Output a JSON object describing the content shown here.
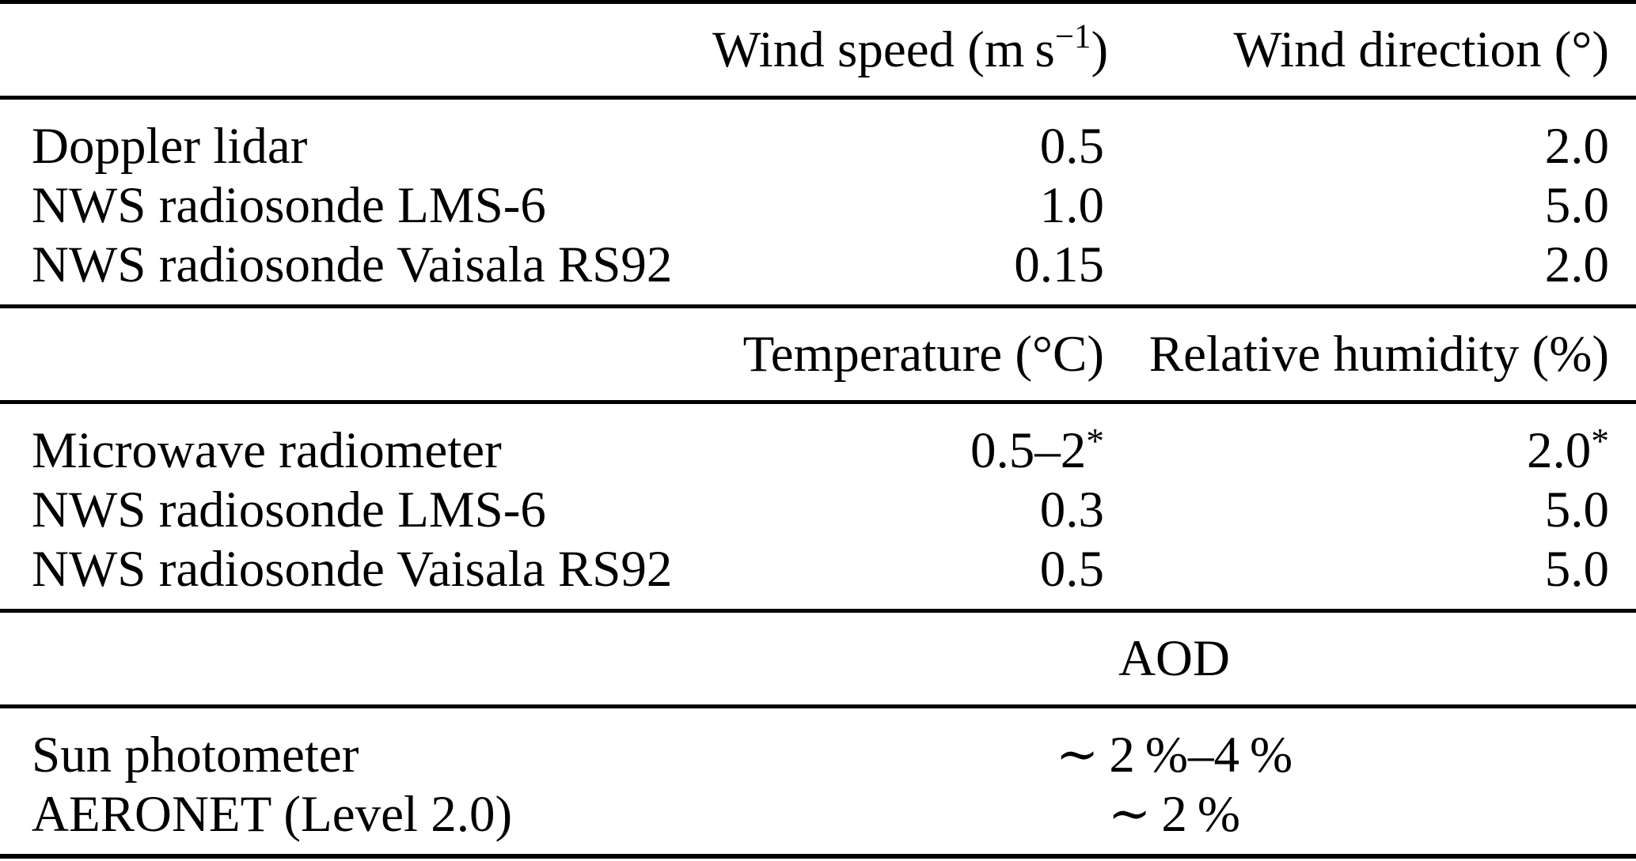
{
  "page": {
    "background_color": "#ffffff",
    "text_color": "#000000",
    "rule_color": "#000000"
  },
  "table": {
    "sections": [
      {
        "name": "wind",
        "header": {
          "instrument": "",
          "col2": {
            "pre": "Wind speed (m s",
            "sup": "−1",
            "post": ")"
          },
          "col3": "Wind direction (°)"
        },
        "rows": [
          {
            "instrument": "Doppler lidar",
            "col2": "0.5",
            "col3": "2.0"
          },
          {
            "instrument": "NWS radiosonde LMS-6",
            "col2": "1.0",
            "col3": "5.0"
          },
          {
            "instrument": "NWS radiosonde Vaisala RS92",
            "col2": "0.15",
            "col3": "2.0"
          }
        ]
      },
      {
        "name": "thermodynamics",
        "header": {
          "instrument": "",
          "col2": "Temperature (°C)",
          "col3": "Relative humidity (%)"
        },
        "rows": [
          {
            "instrument": "Microwave radiometer",
            "col2": "0.5–2",
            "col2_sup": "*",
            "col3": "2.0",
            "col3_sup": "*"
          },
          {
            "instrument": "NWS radiosonde LMS-6",
            "col2": "0.3",
            "col3": "5.0"
          },
          {
            "instrument": "NWS radiosonde Vaisala RS92",
            "col2": "0.5",
            "col3": "5.0"
          }
        ]
      },
      {
        "name": "aod",
        "header": {
          "instrument": "",
          "merged": "AOD"
        },
        "rows": [
          {
            "instrument": "Sun photometer",
            "merged": "∼ 2 %–4 %"
          },
          {
            "instrument": "AERONET (Level 2.0)",
            "merged": "∼ 2 %"
          }
        ]
      }
    ]
  }
}
